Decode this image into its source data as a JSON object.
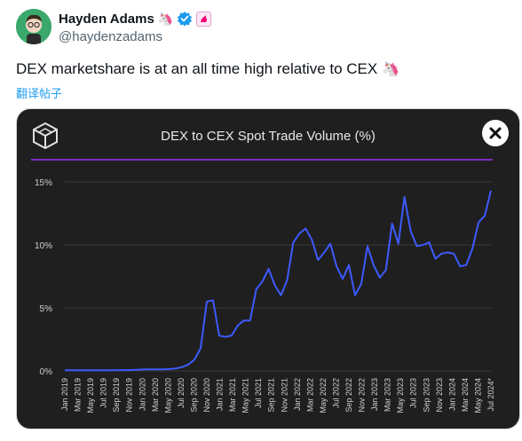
{
  "tweet": {
    "author_name": "Hayden Adams",
    "author_emoji": "🦄",
    "handle": "@haydenzadams",
    "text": "DEX marketshare is at an all time high relative to CEX",
    "text_emoji": "🦄",
    "translate_label": "翻译帖子"
  },
  "colors": {
    "line": "#3d5afe",
    "purple_rule": "#7b2fbe",
    "verified": "#1d9bf0",
    "card_bg": "#1f1f1f"
  },
  "chart_data": {
    "type": "line",
    "title": "DEX to CEX Spot Trade Volume (%)",
    "xlabel": "",
    "ylabel": "",
    "ylim": [
      0,
      15
    ],
    "y_ticks": [
      "0%",
      "5%",
      "10%",
      "15%"
    ],
    "grid": true,
    "x_tick_labels": [
      "Jan 2019",
      "Mar 2019",
      "May 2019",
      "Jul 2019",
      "Sep 2019",
      "Nov 2019",
      "Jan 2020",
      "Mar 2020",
      "May 2020",
      "Jul 2020",
      "Sep 2020",
      "Nov 2020",
      "Jan 2021",
      "Mar 2021",
      "May 2021",
      "Jul 2021",
      "Sep 2021",
      "Nov 2021",
      "Jan 2022",
      "Mar 2022",
      "May 2022",
      "Jul 2022",
      "Sep 2022",
      "Nov 2022",
      "Jan 2023",
      "Mar 2023",
      "May 2023",
      "Jul 2023",
      "Sep 2023",
      "Nov 2023",
      "Jan 2024",
      "Mar 2024",
      "May 2024",
      "Jul 2024*"
    ],
    "series": [
      {
        "values": [
          0.05,
          0.05,
          0.05,
          0.05,
          0.05,
          0.05,
          0.05,
          0.05,
          0.05,
          0.06,
          0.06,
          0.08,
          0.1,
          0.12,
          0.12,
          0.12,
          0.13,
          0.15,
          0.2,
          0.3,
          0.5,
          0.9,
          1.8,
          5.5,
          5.6,
          2.8,
          2.7,
          2.8,
          3.6,
          4.0,
          4.0,
          6.5,
          7.1,
          8.1,
          6.8,
          6.0,
          7.2,
          10.2,
          10.9,
          11.3,
          10.4,
          8.8,
          9.4,
          10.1,
          8.3,
          7.3,
          8.4,
          6.0,
          6.9,
          9.9,
          8.4,
          7.4,
          8.0,
          11.7,
          10.1,
          13.8,
          11.1,
          9.9,
          10.0,
          10.2,
          8.9,
          9.3,
          9.4,
          9.3,
          8.3,
          8.4,
          9.7,
          11.8,
          12.3,
          14.3
        ]
      }
    ]
  }
}
